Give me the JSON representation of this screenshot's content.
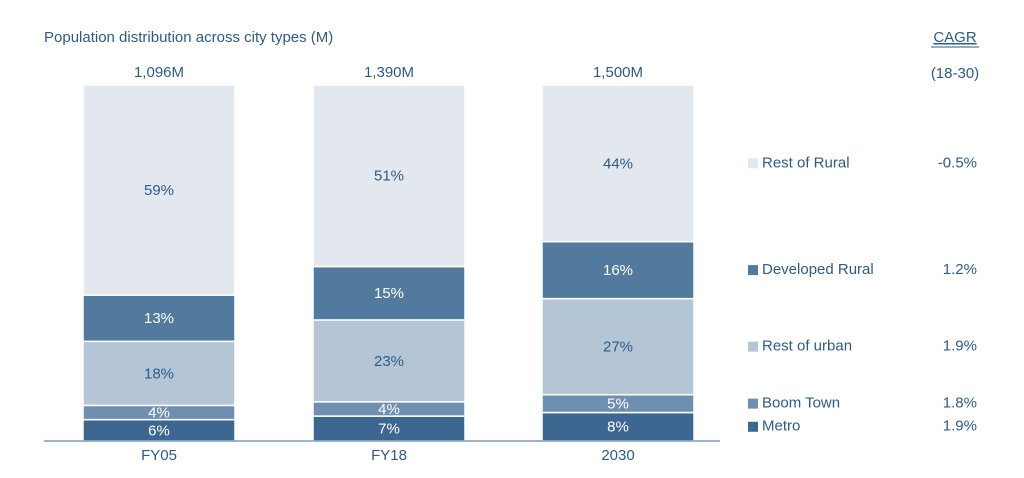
{
  "chart_data": {
    "type": "stacked_bar_100",
    "title": "Population distribution across city types (M)",
    "side_header": "CAGR",
    "side_subheader": "(18-30)",
    "categories": [
      "FY05",
      "FY18",
      "2030"
    ],
    "totals": [
      "1,096M",
      "1,390M",
      "1,500M"
    ],
    "ylim": [
      0,
      100
    ],
    "series": [
      {
        "name": "Metro",
        "color": "#3d6690",
        "label_color": "#ffffff",
        "values": [
          6,
          7,
          8
        ],
        "value_labels": [
          "6%",
          "7%",
          "8%"
        ],
        "cagr": "1.9%"
      },
      {
        "name": "Boom Town",
        "color": "#6f8fb0",
        "label_color": "#ffffff",
        "values": [
          4,
          4,
          5
        ],
        "value_labels": [
          "4%",
          "4%",
          "5%"
        ],
        "cagr": "1.8%"
      },
      {
        "name": "Rest of urban",
        "color": "#b4c5d6",
        "label_color": "#2e5b86",
        "values": [
          18,
          23,
          27
        ],
        "value_labels": [
          "18%",
          "23%",
          "27%"
        ],
        "cagr": "1.9%"
      },
      {
        "name": "Developed Rural",
        "color": "#527a9e",
        "label_color": "#ffffff",
        "values": [
          13,
          15,
          16
        ],
        "value_labels": [
          "13%",
          "15%",
          "16%"
        ],
        "cagr": "1.2%"
      },
      {
        "name": "Rest of Rural",
        "color": "#e3e8ef",
        "label_color": "#2e5b86",
        "values": [
          59,
          51,
          44
        ],
        "value_labels": [
          "59%",
          "51%",
          "44%"
        ],
        "cagr": "-0.5%"
      }
    ]
  }
}
